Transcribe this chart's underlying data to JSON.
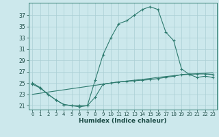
{
  "x": [
    0,
    1,
    2,
    3,
    4,
    5,
    6,
    7,
    8,
    9,
    10,
    11,
    12,
    13,
    14,
    15,
    16,
    17,
    18,
    19,
    20,
    21,
    22,
    23
  ],
  "curve_main": [
    25.0,
    24.2,
    23.0,
    22.0,
    21.2,
    21.0,
    21.0,
    21.0,
    25.5,
    30.0,
    33.0,
    35.5,
    36.0,
    37.0,
    38.0,
    38.5,
    38.0,
    34.0,
    32.5,
    27.5,
    26.5,
    26.0,
    26.2,
    26.0
  ],
  "curve_low": [
    24.8,
    24.1,
    23.0,
    22.0,
    21.2,
    21.0,
    20.8,
    21.0,
    22.5,
    24.8,
    25.0,
    25.2,
    25.3,
    25.4,
    25.5,
    25.6,
    25.8,
    26.0,
    26.2,
    26.5,
    26.6,
    26.6,
    26.6,
    26.5
  ],
  "curve_line": [
    23.0,
    23.2,
    23.4,
    23.6,
    23.8,
    24.0,
    24.2,
    24.4,
    24.6,
    24.8,
    25.0,
    25.2,
    25.35,
    25.5,
    25.65,
    25.8,
    26.0,
    26.15,
    26.3,
    26.45,
    26.55,
    26.65,
    26.72,
    26.8
  ],
  "color": "#2d7a6e",
  "bg_color": "#cce8ec",
  "grid_color": "#aacfd4",
  "xlabel": "Humidex (Indice chaleur)",
  "ylabel_ticks": [
    21,
    23,
    25,
    27,
    29,
    31,
    33,
    35,
    37
  ],
  "xlim": [
    -0.5,
    23.5
  ],
  "ylim": [
    20.3,
    39.2
  ],
  "xticks": [
    0,
    1,
    2,
    3,
    4,
    5,
    6,
    7,
    8,
    9,
    10,
    11,
    12,
    13,
    14,
    15,
    16,
    17,
    18,
    19,
    20,
    21,
    22,
    23
  ]
}
